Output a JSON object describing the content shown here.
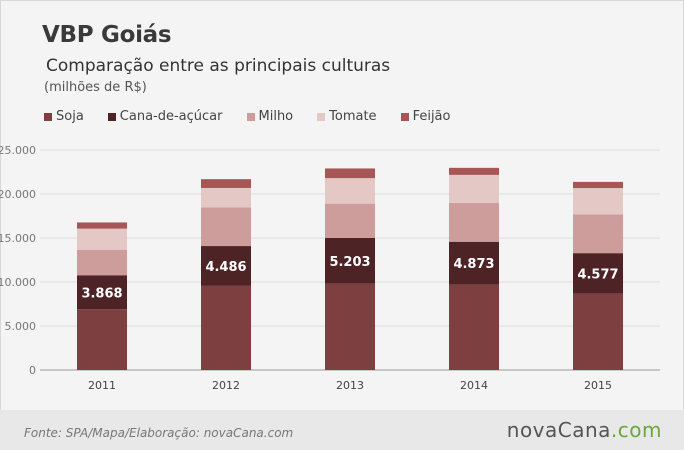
{
  "title": "VBP Goiás",
  "subtitle": "Comparação entre as principais culturas",
  "units": "(milhões de R$)",
  "source": "Fonte: SPA/Mapa/Elaboração: novaCana.com",
  "logo": {
    "part1": "novaCana",
    "part2": ".com"
  },
  "colors": {
    "Soja": "#7e3f40",
    "Cana-de-açúcar": "#4e2326",
    "Milho": "#cc9d9b",
    "Tomate": "#e3c8c6",
    "Feijão": "#a85556"
  },
  "chart_data": {
    "type": "bar",
    "stacked": true,
    "categories": [
      "2011",
      "2012",
      "2013",
      "2014",
      "2015"
    ],
    "series": [
      {
        "name": "Soja",
        "values": [
          6900,
          9600,
          9800,
          9700,
          8700
        ]
      },
      {
        "name": "Cana-de-açúcar",
        "values": [
          3868,
          4486,
          5203,
          4873,
          4577
        ],
        "data_labels": [
          "3.868",
          "4.486",
          "5.203",
          "4.873",
          "4.577"
        ]
      },
      {
        "name": "Milho",
        "values": [
          2900,
          4400,
          3900,
          4400,
          4400
        ]
      },
      {
        "name": "Tomate",
        "values": [
          2400,
          2200,
          2900,
          3200,
          3000
        ]
      },
      {
        "name": "Feijão",
        "values": [
          700,
          1000,
          1100,
          800,
          700
        ]
      }
    ],
    "yticks": [
      "0",
      "5.000",
      "10.000",
      "15.000",
      "20.000",
      "25.000"
    ],
    "ylim": [
      0,
      25000
    ],
    "grid": true,
    "legend": "top-left"
  }
}
